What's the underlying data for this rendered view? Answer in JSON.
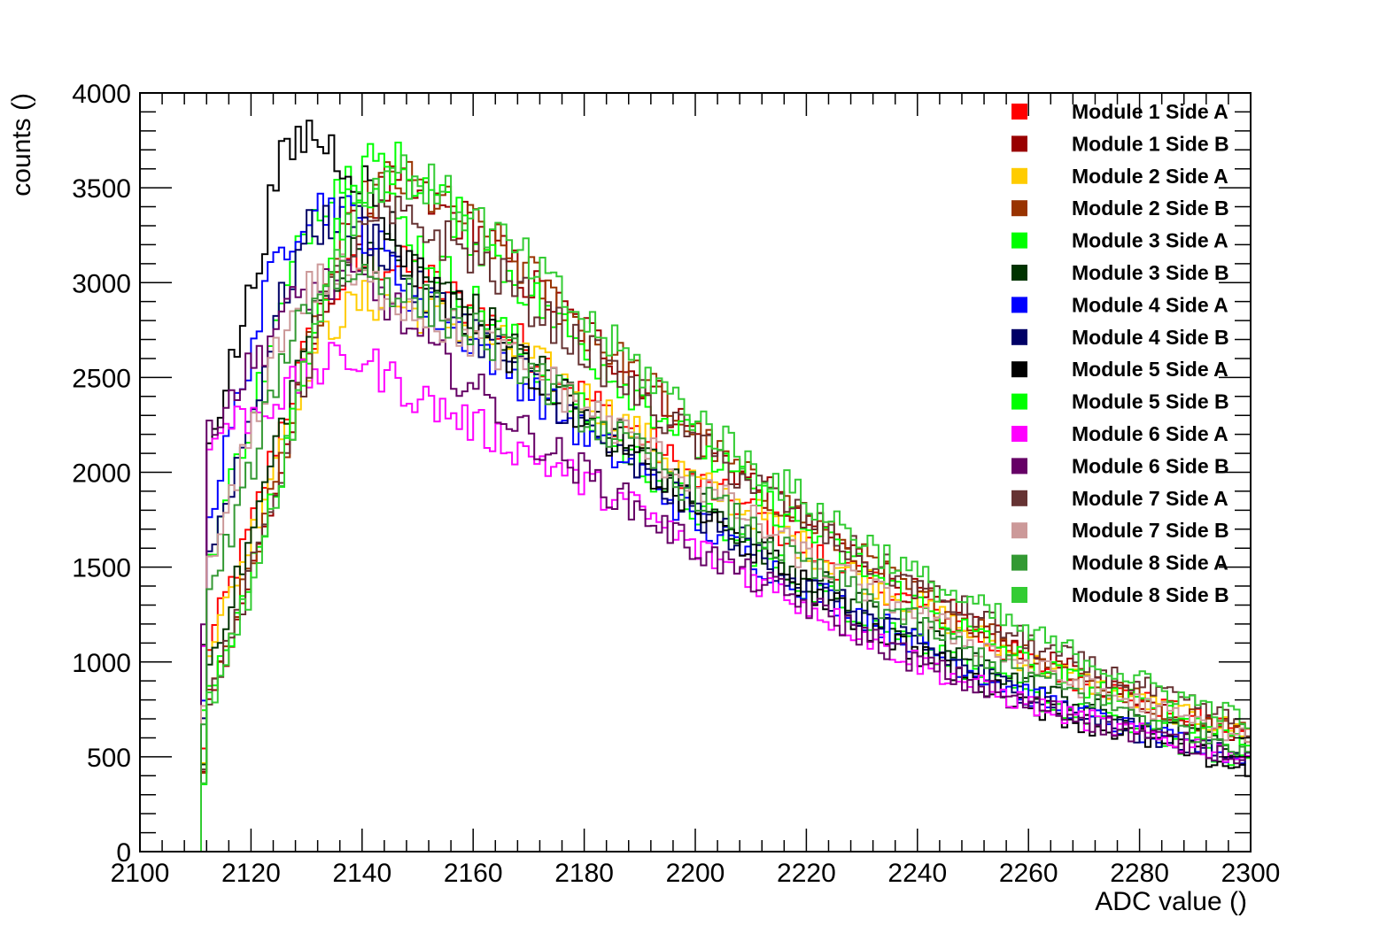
{
  "chart_data": {
    "type": "line",
    "style": "step-histogram",
    "xlabel": "ADC value ()",
    "ylabel": "counts ()",
    "xlim": [
      2100,
      2300
    ],
    "ylim": [
      0,
      4000
    ],
    "x_ticks": [
      2100,
      2120,
      2140,
      2160,
      2180,
      2200,
      2220,
      2240,
      2260,
      2280,
      2300
    ],
    "y_ticks": [
      0,
      500,
      1000,
      1500,
      2000,
      2500,
      3000,
      3500,
      4000
    ],
    "bin_width": 1,
    "legend_position": "top-right",
    "x": [
      2100,
      2111,
      2112,
      2115,
      2120,
      2125,
      2130,
      2135,
      2140,
      2145,
      2150,
      2160,
      2170,
      2180,
      2190,
      2200,
      2210,
      2220,
      2230,
      2240,
      2250,
      2260,
      2270,
      2280,
      2290,
      2300
    ],
    "series": [
      {
        "name": "Module 1 Side A",
        "color": "#ff0000",
        "values": [
          0,
          0,
          1050,
          1300,
          1700,
          2200,
          2650,
          2950,
          3100,
          3100,
          3050,
          2850,
          2650,
          2400,
          2200,
          1950,
          1800,
          1600,
          1450,
          1300,
          1150,
          1000,
          900,
          800,
          700,
          620
        ]
      },
      {
        "name": "Module 1 Side B",
        "color": "#990000",
        "values": [
          0,
          0,
          800,
          1000,
          1450,
          1950,
          2550,
          3050,
          3350,
          3500,
          3450,
          3300,
          3000,
          2750,
          2500,
          2200,
          1950,
          1750,
          1550,
          1350,
          1200,
          1050,
          920,
          800,
          700,
          610
        ]
      },
      {
        "name": "Module 2 Side A",
        "color": "#ffcc00",
        "values": [
          0,
          0,
          1050,
          1250,
          1650,
          2150,
          2550,
          2800,
          2900,
          2900,
          2850,
          2750,
          2600,
          2400,
          2200,
          1950,
          1800,
          1600,
          1450,
          1300,
          1150,
          1000,
          900,
          790,
          700,
          630
        ]
      },
      {
        "name": "Module 2 Side B",
        "color": "#993300",
        "values": [
          0,
          0,
          800,
          1050,
          1500,
          2000,
          2600,
          3100,
          3400,
          3550,
          3500,
          3300,
          3050,
          2750,
          2500,
          2200,
          1950,
          1750,
          1550,
          1350,
          1200,
          1050,
          920,
          800,
          700,
          620
        ]
      },
      {
        "name": "Module 3 Side A",
        "color": "#00ff00",
        "values": [
          0,
          0,
          1500,
          1800,
          2300,
          2800,
          3300,
          3550,
          3550,
          3400,
          3200,
          2900,
          2600,
          2300,
          2050,
          1800,
          1600,
          1400,
          1250,
          1100,
          950,
          820,
          720,
          630,
          550,
          480
        ]
      },
      {
        "name": "Module 3 Side B",
        "color": "#003300",
        "values": [
          0,
          0,
          950,
          1200,
          1650,
          2200,
          2700,
          3050,
          3200,
          3150,
          3050,
          2850,
          2600,
          2350,
          2100,
          1850,
          1650,
          1450,
          1300,
          1150,
          1000,
          880,
          770,
          680,
          600,
          530
        ]
      },
      {
        "name": "Module 4 Side A",
        "color": "#0000ff",
        "values": [
          0,
          0,
          1700,
          2050,
          2650,
          3150,
          3400,
          3400,
          3300,
          3100,
          2900,
          2700,
          2450,
          2200,
          2000,
          1750,
          1550,
          1400,
          1250,
          1100,
          950,
          830,
          720,
          630,
          550,
          480
        ]
      },
      {
        "name": "Module 4 Side B",
        "color": "#000066",
        "values": [
          0,
          0,
          1500,
          1800,
          2300,
          2850,
          3250,
          3350,
          3300,
          3150,
          2950,
          2750,
          2500,
          2250,
          2000,
          1800,
          1600,
          1400,
          1250,
          1100,
          950,
          830,
          720,
          630,
          550,
          480
        ]
      },
      {
        "name": "Module 5 Side A",
        "color": "#000000",
        "values": [
          0,
          0,
          2200,
          2400,
          2950,
          3600,
          3800,
          3700,
          3550,
          3300,
          3050,
          2800,
          2550,
          2300,
          2050,
          1800,
          1600,
          1400,
          1200,
          1050,
          900,
          780,
          680,
          600,
          520,
          420
        ]
      },
      {
        "name": "Module 5 Side B",
        "color": "#00ff00",
        "values": [
          0,
          0,
          800,
          1000,
          1450,
          1950,
          2600,
          3200,
          3600,
          3650,
          3550,
          3250,
          2950,
          2650,
          2400,
          2150,
          1900,
          1700,
          1500,
          1300,
          1150,
          1000,
          880,
          780,
          680,
          600
        ]
      },
      {
        "name": "Module 6 Side A",
        "color": "#ff00ff",
        "values": [
          0,
          0,
          2100,
          2250,
          2300,
          2400,
          2500,
          2580,
          2600,
          2500,
          2400,
          2250,
          2100,
          1950,
          1800,
          1600,
          1450,
          1300,
          1150,
          1000,
          880,
          780,
          700,
          620,
          560,
          500
        ]
      },
      {
        "name": "Module 6 Side B",
        "color": "#660066",
        "values": [
          0,
          0,
          2250,
          2350,
          2550,
          2800,
          2950,
          3000,
          3000,
          2900,
          2700,
          2450,
          2200,
          2000,
          1800,
          1600,
          1450,
          1300,
          1150,
          1000,
          880,
          780,
          700,
          620,
          560,
          500
        ]
      },
      {
        "name": "Module 7 Side A",
        "color": "#663333",
        "values": [
          0,
          0,
          800,
          1000,
          1450,
          1950,
          2550,
          3000,
          3250,
          3350,
          3300,
          3150,
          2900,
          2650,
          2400,
          2150,
          1950,
          1750,
          1550,
          1400,
          1250,
          1100,
          980,
          870,
          760,
          660
        ]
      },
      {
        "name": "Module 7 Side B",
        "color": "#cc9999",
        "values": [
          0,
          0,
          1450,
          1700,
          2200,
          2700,
          2950,
          3050,
          3000,
          2950,
          2850,
          2700,
          2550,
          2350,
          2150,
          1950,
          1750,
          1550,
          1400,
          1250,
          1100,
          980,
          870,
          780,
          680,
          600
        ]
      },
      {
        "name": "Module 8 Side A",
        "color": "#339933",
        "values": [
          0,
          0,
          1300,
          1550,
          2000,
          2550,
          2900,
          3050,
          3050,
          3000,
          2900,
          2750,
          2550,
          2300,
          2100,
          1900,
          1700,
          1500,
          1350,
          1200,
          1050,
          930,
          820,
          720,
          630,
          550
        ]
      },
      {
        "name": "Module 8 Side B",
        "color": "#33cc33",
        "values": [
          0,
          0,
          750,
          950,
          1400,
          1950,
          2600,
          3150,
          3450,
          3600,
          3550,
          3350,
          3100,
          2800,
          2550,
          2300,
          2050,
          1850,
          1650,
          1450,
          1300,
          1150,
          1020,
          900,
          790,
          690
        ]
      }
    ]
  }
}
